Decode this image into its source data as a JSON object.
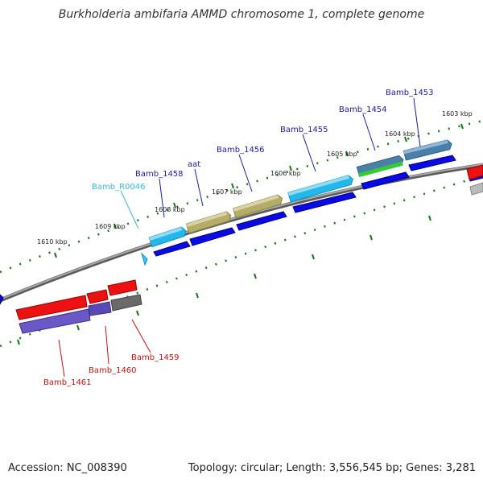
{
  "title": "Burkholderia ambifaria AMMD chromosome 1, complete genome",
  "footer": {
    "accession": "Accession: NC_008390",
    "topology": "Topology: circular; Length: 3,556,545 bp; Genes: 3,281"
  },
  "kbp_labels": [
    "1603 kbp",
    "1604 kbp",
    "1605 kbp",
    "1606 kbp",
    "1607 kbp",
    "1608 kbp",
    "1609 kbp",
    "1610 kbp"
  ],
  "gene_labels": {
    "bamb_1453": "Bamb_1453",
    "bamb_1454": "Bamb_1454",
    "bamb_1455": "Bamb_1455",
    "bamb_1456": "Bamb_1456",
    "aat": "aat",
    "bamb_1458": "Bamb_1458",
    "bamb_r0046": "Bamb_R0046",
    "bamb_1459": "Bamb_1459",
    "bamb_1460": "Bamb_1460",
    "bamb_1461": "Bamb_1461"
  },
  "colors": {
    "forward_label": "#1a1aa8",
    "rna_label": "#33bbdd",
    "reverse_label": "#cc1111",
    "cds_blue": "#0a0ae6",
    "red": "#ee1111",
    "tick_green": "#137a13",
    "backbone": "#808080"
  }
}
